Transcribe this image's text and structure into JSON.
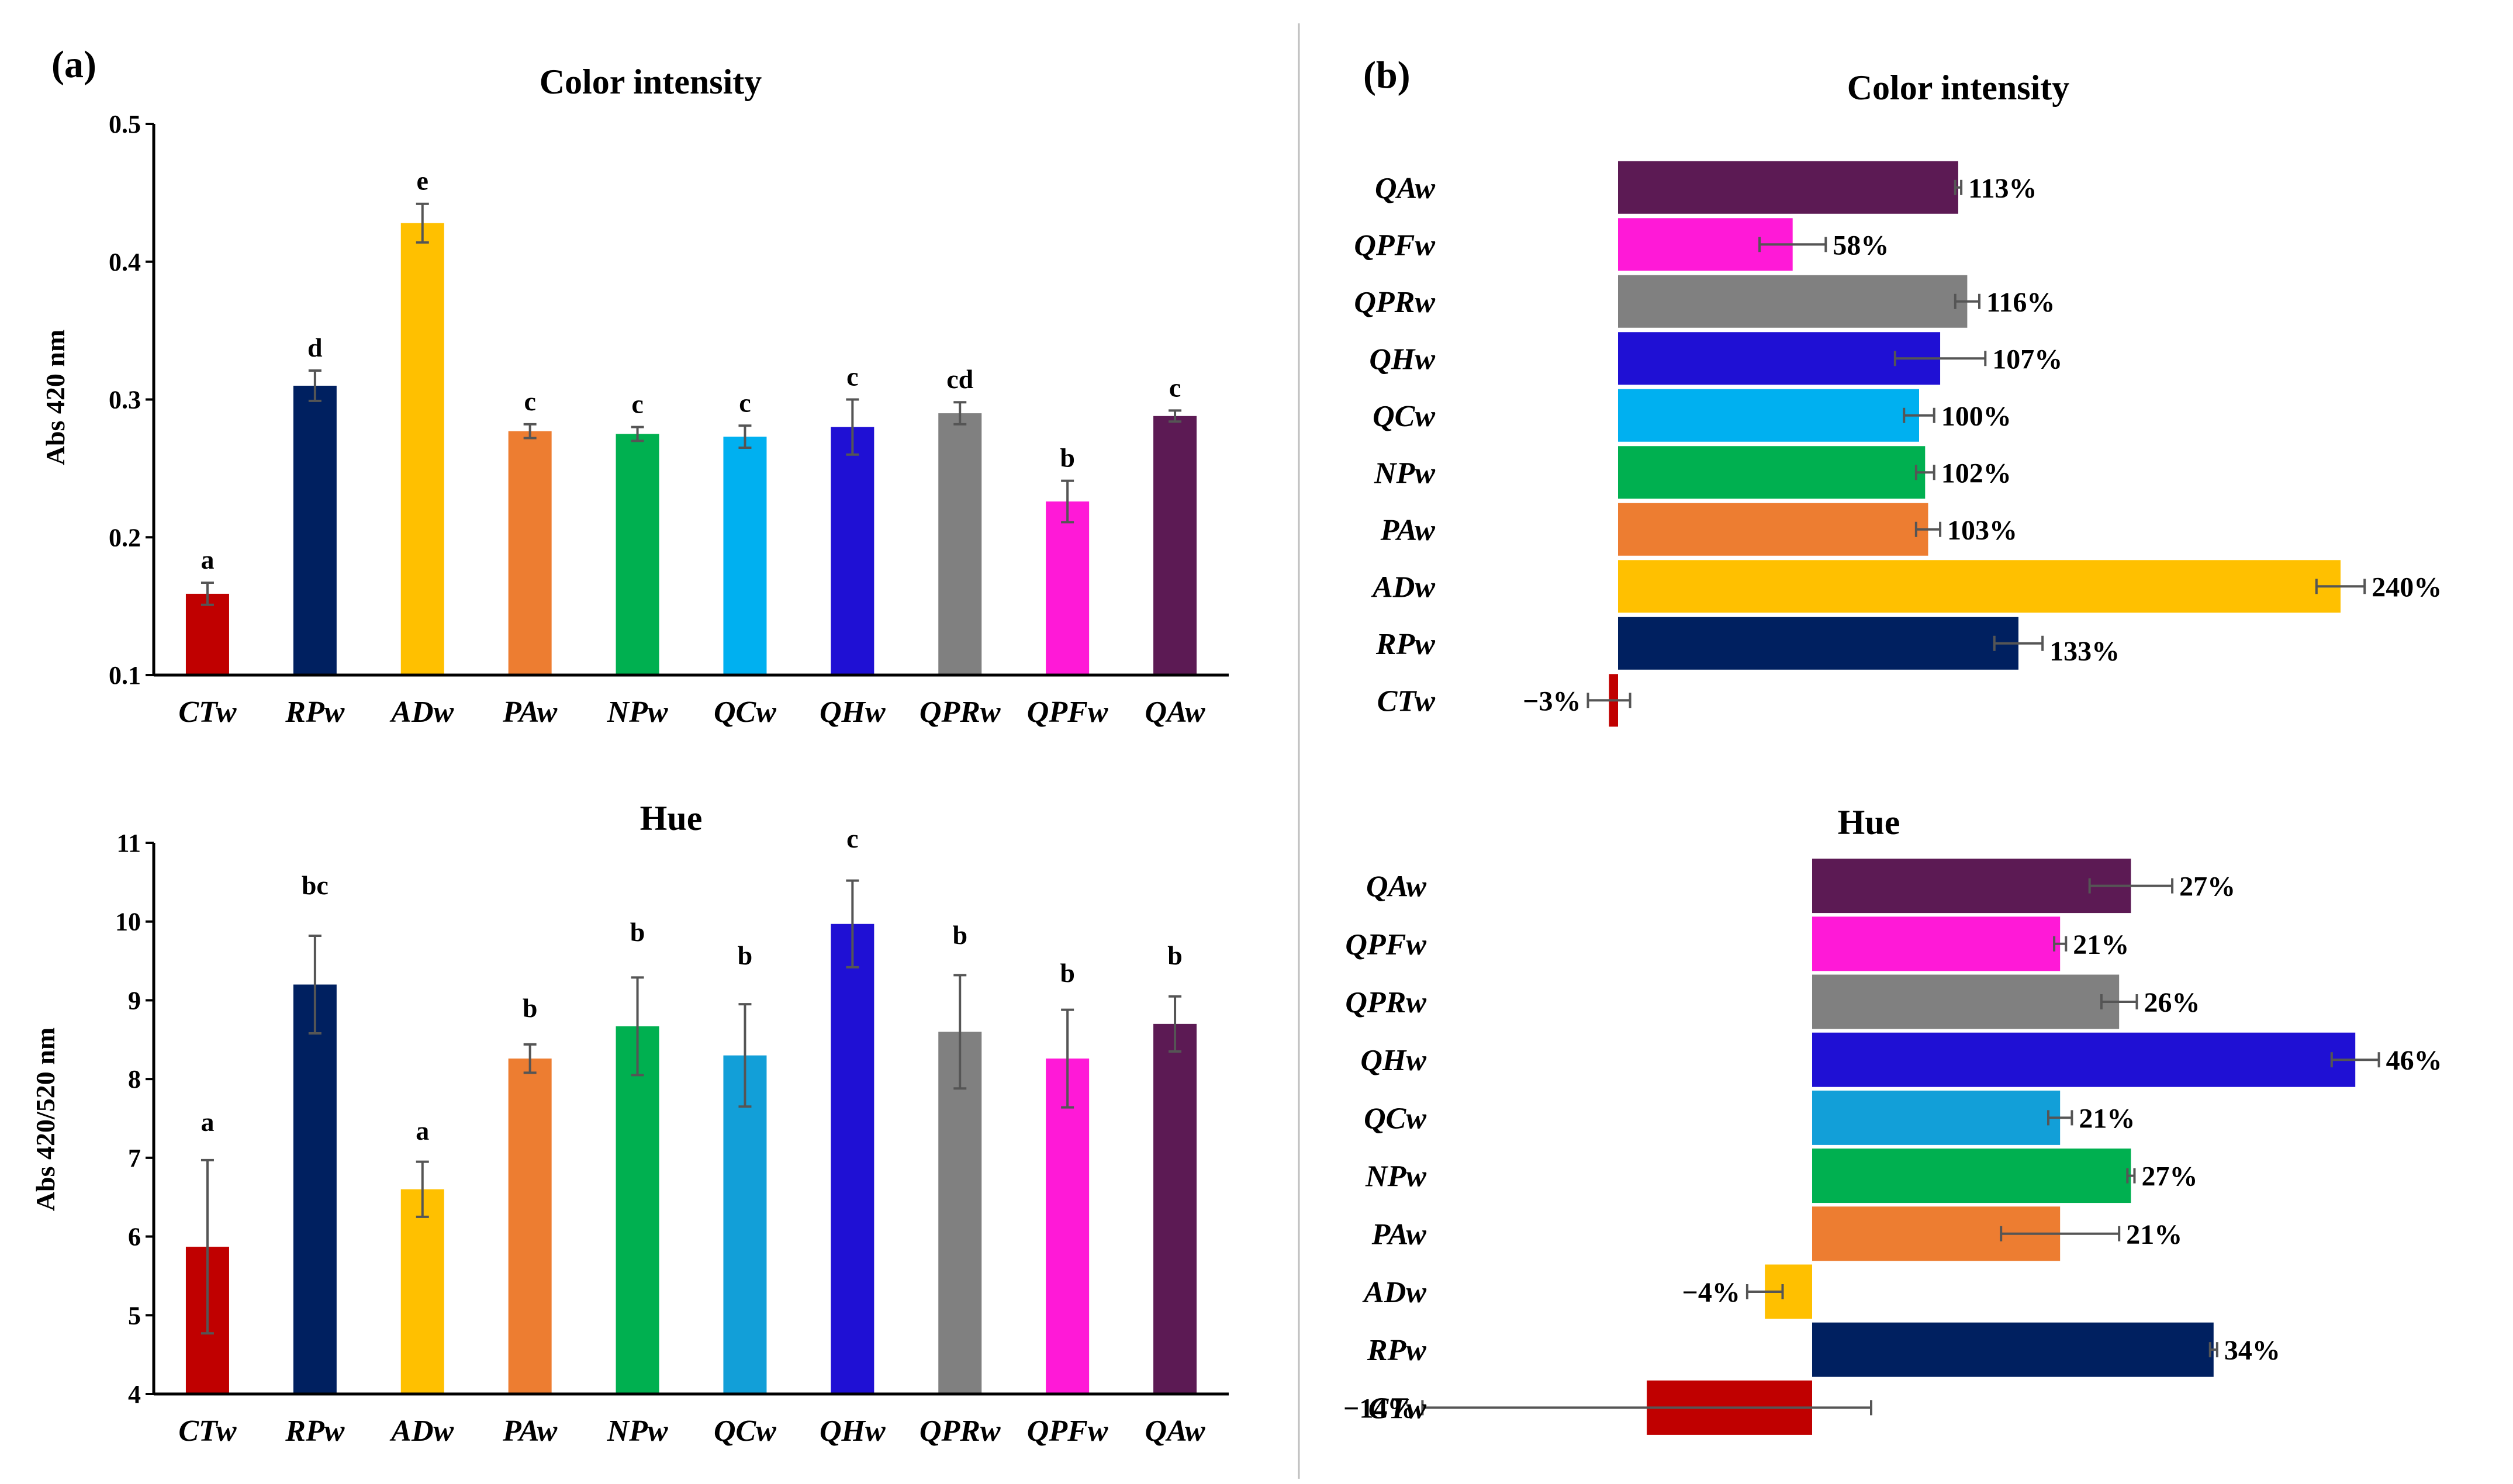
{
  "panels": [
    {
      "panel_label": "(a)",
      "charts": [
        {
          "type": "bar",
          "title": "Color intensity",
          "ylabel": "Abs 420 nm",
          "ylim": [
            0.1,
            0.5
          ],
          "yticks": [
            "0.1",
            "0.2",
            "0.3",
            "0.4",
            "0.5"
          ],
          "categories": [
            "CTw",
            "RPw",
            "ADw",
            "PAw",
            "NPw",
            "QCw",
            "QHw",
            "QPRw",
            "QPFw",
            "QAw"
          ],
          "values": [
            0.159,
            0.31,
            0.428,
            0.277,
            0.275,
            0.273,
            0.28,
            0.29,
            0.226,
            0.288
          ],
          "errors": [
            0.008,
            0.011,
            0.014,
            0.005,
            0.005,
            0.008,
            0.02,
            0.008,
            0.015,
            0.004
          ],
          "letters": [
            "a",
            "d",
            "e",
            "c",
            "c",
            "c",
            "c",
            "cd",
            "b",
            "c"
          ],
          "colors": [
            "#c00000",
            "#002060",
            "#ffc000",
            "#ed7d31",
            "#00b050",
            "#00b0f0",
            "#1f10d4",
            "#808080",
            "#ff19d7",
            "#5c1a54"
          ],
          "grid": false
        },
        {
          "type": "bar",
          "title": "Hue",
          "ylabel": "Abs 420/520 nm",
          "ylim": [
            4,
            11
          ],
          "yticks": [
            "4",
            "5",
            "6",
            "7",
            "8",
            "9",
            "10",
            "11"
          ],
          "categories": [
            "CTw",
            "RPw",
            "ADw",
            "PAw",
            "NPw",
            "QCw",
            "QHw",
            "QPRw",
            "QPFw",
            "QAw"
          ],
          "values": [
            5.87,
            9.2,
            6.6,
            8.26,
            8.67,
            8.3,
            9.97,
            8.6,
            8.26,
            8.7
          ],
          "errors": [
            1.1,
            0.62,
            0.35,
            0.18,
            0.62,
            0.65,
            0.55,
            0.72,
            0.62,
            0.35
          ],
          "letters": [
            "a",
            "bc",
            "a",
            "b",
            "b",
            "b",
            "c",
            "b",
            "b",
            "b"
          ],
          "colors": [
            "#c00000",
            "#002060",
            "#ffc000",
            "#ed7d31",
            "#00b050",
            "#129fd8",
            "#1f10d4",
            "#808080",
            "#ff19d7",
            "#5c1a54"
          ],
          "grid": false
        }
      ]
    },
    {
      "panel_label": "(b)",
      "charts": [
        {
          "type": "bar",
          "orientation": "horizontal",
          "title": "Color intensity",
          "categories": [
            "QAw",
            "QPFw",
            "QPRw",
            "QHw",
            "QCw",
            "NPw",
            "PAw",
            "ADw",
            "RPw",
            "CTw"
          ],
          "values": [
            113,
            58,
            116,
            107,
            100,
            102,
            103,
            240,
            133,
            -3
          ],
          "errors": [
            1,
            11,
            4,
            15,
            5,
            3,
            4,
            8,
            8,
            7
          ],
          "labels": [
            "113%",
            "58%",
            "116%",
            "107%",
            "100%",
            "102%",
            "103%",
            "240%",
            "133%",
            "−3%"
          ],
          "colors": [
            "#5c1a54",
            "#ff19d7",
            "#808080",
            "#1f10d4",
            "#00b0f0",
            "#00b050",
            "#ed7d31",
            "#ffc000",
            "#002060",
            "#c00000"
          ],
          "grid": false
        },
        {
          "type": "bar",
          "orientation": "horizontal",
          "title": "Hue",
          "categories": [
            "QAw",
            "QPFw",
            "QPRw",
            "QHw",
            "QCw",
            "NPw",
            "PAw",
            "ADw",
            "RPw",
            "CTw"
          ],
          "values": [
            27,
            21,
            26,
            46,
            21,
            27,
            21,
            -4,
            34,
            -14
          ],
          "errors": [
            3.5,
            0.5,
            1.5,
            2,
            1,
            0.3,
            5,
            1.5,
            0.3,
            19
          ],
          "labels": [
            "27%",
            "21%",
            "26%",
            "46%",
            "21%",
            "27%",
            "21%",
            "−4%",
            "34%",
            "−14%"
          ],
          "colors": [
            "#5c1a54",
            "#ff19d7",
            "#808080",
            "#1f10d4",
            "#129fd8",
            "#00b050",
            "#ed7d31",
            "#ffc000",
            "#002060",
            "#c00000"
          ],
          "grid": false
        }
      ]
    }
  ]
}
